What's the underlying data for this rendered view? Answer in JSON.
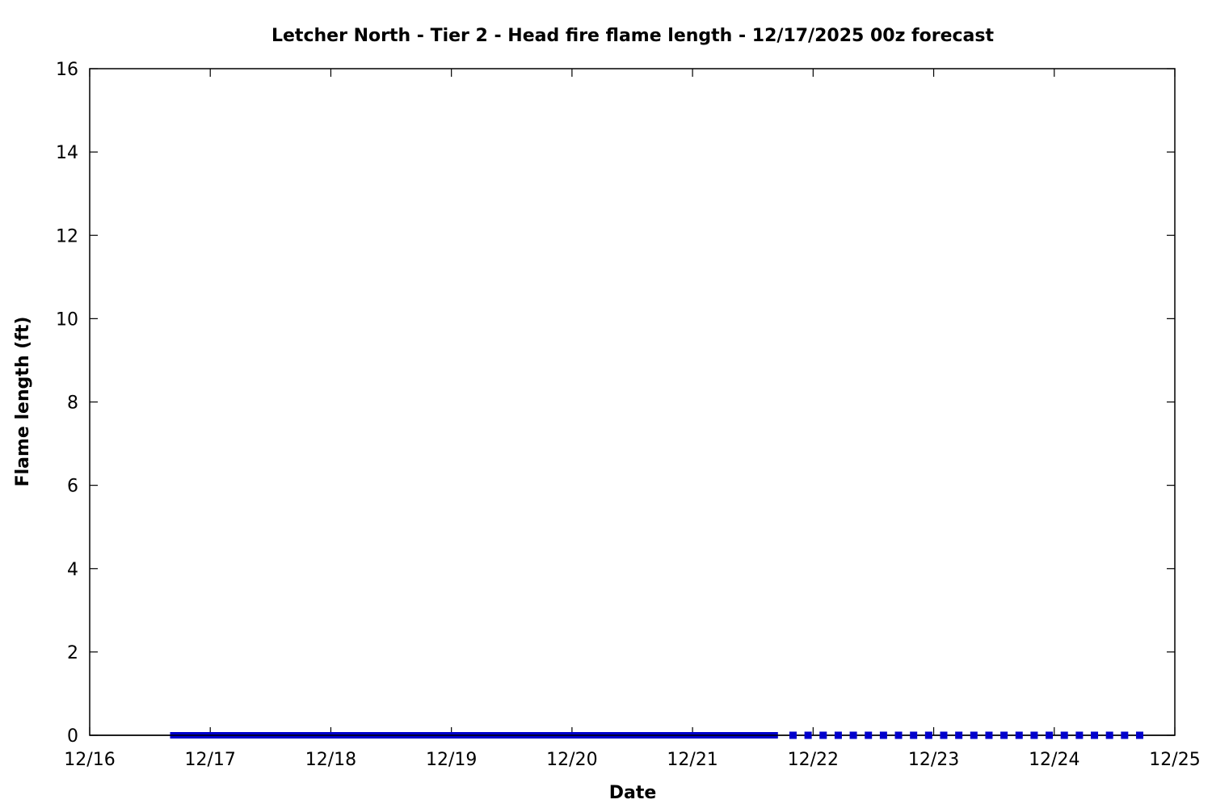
{
  "chart_data": {
    "type": "line",
    "title": "Letcher North - Tier 2 - Head fire flame length - 12/17/2025 00z forecast",
    "xlabel": "Date",
    "ylabel": "Flame length (ft)",
    "xlim": [
      "12/16 00",
      "12/25 00"
    ],
    "ylim": [
      0,
      16
    ],
    "x_tick_labels": [
      "12/16",
      "12/17",
      "12/18",
      "12/19",
      "12/20",
      "12/21",
      "12/22",
      "12/23",
      "12/24",
      "12/25"
    ],
    "y_tick_labels": [
      "0",
      "2",
      "4",
      "6",
      "8",
      "10",
      "12",
      "14",
      "16"
    ],
    "grid": false,
    "color": "#0000cc",
    "series": [
      {
        "style": "solid-line",
        "x": [
          "12/16 16",
          "12/16 17",
          "12/16 18",
          "12/16 19",
          "12/16 20",
          "12/16 21",
          "12/16 22",
          "12/16 23",
          "12/17 00",
          "12/17 01",
          "12/17 02",
          "12/17 03",
          "12/17 04",
          "12/17 05",
          "12/17 06",
          "12/17 07",
          "12/17 08",
          "12/17 09",
          "12/17 10",
          "12/17 11",
          "12/17 12",
          "12/17 13",
          "12/17 14",
          "12/17 15",
          "12/17 16",
          "12/17 17",
          "12/17 18",
          "12/17 19",
          "12/17 20",
          "12/17 21",
          "12/17 22",
          "12/17 23",
          "12/18 00",
          "12/18 01",
          "12/18 02",
          "12/18 03",
          "12/18 04",
          "12/18 05",
          "12/18 06",
          "12/18 07",
          "12/18 08",
          "12/18 09",
          "12/18 10",
          "12/18 11",
          "12/18 12",
          "12/18 13",
          "12/18 14",
          "12/18 15",
          "12/18 16",
          "12/18 17",
          "12/18 18",
          "12/18 19",
          "12/18 20",
          "12/18 21",
          "12/18 22",
          "12/18 23",
          "12/19 00",
          "12/19 01",
          "12/19 02",
          "12/19 03",
          "12/19 04",
          "12/19 05",
          "12/19 06",
          "12/19 07",
          "12/19 08",
          "12/19 09",
          "12/19 10",
          "12/19 11",
          "12/19 12",
          "12/19 13",
          "12/19 14",
          "12/19 15",
          "12/19 16",
          "12/19 17",
          "12/19 18",
          "12/19 19",
          "12/19 20",
          "12/19 21",
          "12/19 22",
          "12/19 23",
          "12/20 00",
          "12/20 01",
          "12/20 02",
          "12/20 03",
          "12/20 04",
          "12/20 05",
          "12/20 06",
          "12/20 07",
          "12/20 08",
          "12/20 09",
          "12/20 10",
          "12/20 11",
          "12/20 12",
          "12/20 13",
          "12/20 14",
          "12/20 15",
          "12/20 16",
          "12/20 17",
          "12/20 18",
          "12/20 19",
          "12/20 20",
          "12/20 21",
          "12/20 22",
          "12/20 23",
          "12/21 00",
          "12/21 01",
          "12/21 02",
          "12/21 03",
          "12/21 04",
          "12/21 05",
          "12/21 06",
          "12/21 07",
          "12/21 08",
          "12/21 09",
          "12/21 10",
          "12/21 11",
          "12/21 12",
          "12/21 13",
          "12/21 14",
          "12/21 15",
          "12/21 16",
          "12/21 17"
        ],
        "y_constant": 0
      },
      {
        "style": "square-points",
        "x": [
          "12/21 20",
          "12/21 23",
          "12/22 02",
          "12/22 05",
          "12/22 08",
          "12/22 11",
          "12/22 14",
          "12/22 17",
          "12/22 20",
          "12/22 23",
          "12/23 02",
          "12/23 05",
          "12/23 08",
          "12/23 11",
          "12/23 14",
          "12/23 17",
          "12/23 20",
          "12/23 23",
          "12/24 02",
          "12/24 05",
          "12/24 08",
          "12/24 11",
          "12/24 14",
          "12/24 17"
        ],
        "y_constant": 0
      }
    ]
  }
}
